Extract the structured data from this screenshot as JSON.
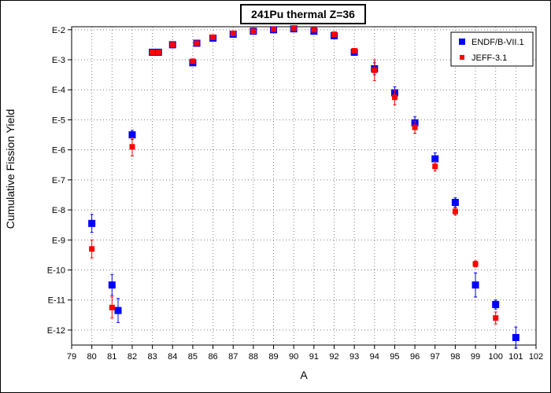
{
  "chart_data": {
    "type": "scatter",
    "title": "241Pu thermal Z=36",
    "xlabel": "A",
    "ylabel": "Cumulative Fission Yield",
    "xlim": [
      79,
      102
    ],
    "ylim": [
      -12.5,
      -1.9
    ],
    "yscale": "log",
    "grid": true,
    "legend_position": "top-right",
    "x_ticks": [
      79,
      80,
      81,
      82,
      83,
      84,
      85,
      86,
      87,
      88,
      89,
      90,
      91,
      92,
      93,
      94,
      95,
      96,
      97,
      98,
      99,
      100,
      101,
      102
    ],
    "y_ticks": [
      {
        "value": -2,
        "label": "E-2"
      },
      {
        "value": -3,
        "label": "E-3"
      },
      {
        "value": -4,
        "label": "E-4"
      },
      {
        "value": -5,
        "label": "E-5"
      },
      {
        "value": -6,
        "label": "E-6"
      },
      {
        "value": -7,
        "label": "E-7"
      },
      {
        "value": -8,
        "label": "E-8"
      },
      {
        "value": -9,
        "label": "E-9"
      },
      {
        "value": -10,
        "label": "E-10"
      },
      {
        "value": -11,
        "label": "E-11"
      },
      {
        "value": -12,
        "label": "E-12"
      }
    ],
    "series": [
      {
        "name": "ENDF/B-VII.1",
        "color": "#0000ff",
        "marker": "large-square",
        "points": [
          {
            "x": 80,
            "y": -8.45,
            "err": 0.3
          },
          {
            "x": 81,
            "y": -10.5,
            "err": 0.35
          },
          {
            "x": 81.3,
            "y": -11.35,
            "err": 0.4
          },
          {
            "x": 82,
            "y": -5.5,
            "err": 0.15
          },
          {
            "x": 83,
            "y": -2.75,
            "err": 0.05
          },
          {
            "x": 83.3,
            "y": -2.75,
            "err": 0.05
          },
          {
            "x": 84,
            "y": -2.5,
            "err": 0.05
          },
          {
            "x": 85,
            "y": -3.1,
            "err": 0.07
          },
          {
            "x": 85.2,
            "y": -2.45,
            "err": 0.05
          },
          {
            "x": 86,
            "y": -2.28,
            "err": 0.04
          },
          {
            "x": 87,
            "y": -2.15,
            "err": 0.04
          },
          {
            "x": 88,
            "y": -2.05,
            "err": 0.04
          },
          {
            "x": 89,
            "y": -2.0,
            "err": 0.03
          },
          {
            "x": 90,
            "y": -1.97,
            "err": 0.03
          },
          {
            "x": 91,
            "y": -2.05,
            "err": 0.04
          },
          {
            "x": 92,
            "y": -2.2,
            "err": 0.04
          },
          {
            "x": 93,
            "y": -2.75,
            "err": 0.06
          },
          {
            "x": 94,
            "y": -3.3,
            "err": 0.2
          },
          {
            "x": 95,
            "y": -4.1,
            "err": 0.2
          },
          {
            "x": 96,
            "y": -5.1,
            "err": 0.2
          },
          {
            "x": 97,
            "y": -6.3,
            "err": 0.2
          },
          {
            "x": 98,
            "y": -7.75,
            "err": 0.15
          },
          {
            "x": 99,
            "y": -10.5,
            "err": 0.4
          },
          {
            "x": 100,
            "y": -11.15,
            "err": 0.15
          },
          {
            "x": 101,
            "y": -12.25,
            "err": 0.35
          }
        ]
      },
      {
        "name": "JEFF-3.1",
        "color": "#ff0000",
        "marker": "small-square",
        "points": [
          {
            "x": 80,
            "y": -9.3,
            "err": 0.3
          },
          {
            "x": 81,
            "y": -11.25,
            "err": 0.35
          },
          {
            "x": 82,
            "y": -5.9,
            "err": 0.3
          },
          {
            "x": 83,
            "y": -2.75,
            "err": 0.05
          },
          {
            "x": 83.3,
            "y": -2.75,
            "err": 0.05
          },
          {
            "x": 84,
            "y": -2.5,
            "err": 0.05
          },
          {
            "x": 85,
            "y": -3.05,
            "err": 0.06
          },
          {
            "x": 85.2,
            "y": -2.45,
            "err": 0.05
          },
          {
            "x": 86,
            "y": -2.25,
            "err": 0.04
          },
          {
            "x": 87,
            "y": -2.12,
            "err": 0.04
          },
          {
            "x": 88,
            "y": -2.05,
            "err": 0.03
          },
          {
            "x": 89,
            "y": -1.98,
            "err": 0.03
          },
          {
            "x": 90,
            "y": -1.95,
            "err": 0.03
          },
          {
            "x": 91,
            "y": -2.0,
            "err": 0.03
          },
          {
            "x": 92,
            "y": -2.15,
            "err": 0.04
          },
          {
            "x": 93,
            "y": -2.7,
            "err": 0.06
          },
          {
            "x": 94,
            "y": -3.35,
            "err": 0.35
          },
          {
            "x": 95,
            "y": -4.25,
            "err": 0.25
          },
          {
            "x": 96,
            "y": -5.25,
            "err": 0.2
          },
          {
            "x": 97,
            "y": -6.55,
            "err": 0.15
          },
          {
            "x": 98,
            "y": -8.05,
            "err": 0.12
          },
          {
            "x": 99,
            "y": -9.8,
            "err": 0.1
          },
          {
            "x": 100,
            "y": -11.6,
            "err": 0.2
          }
        ]
      }
    ]
  }
}
